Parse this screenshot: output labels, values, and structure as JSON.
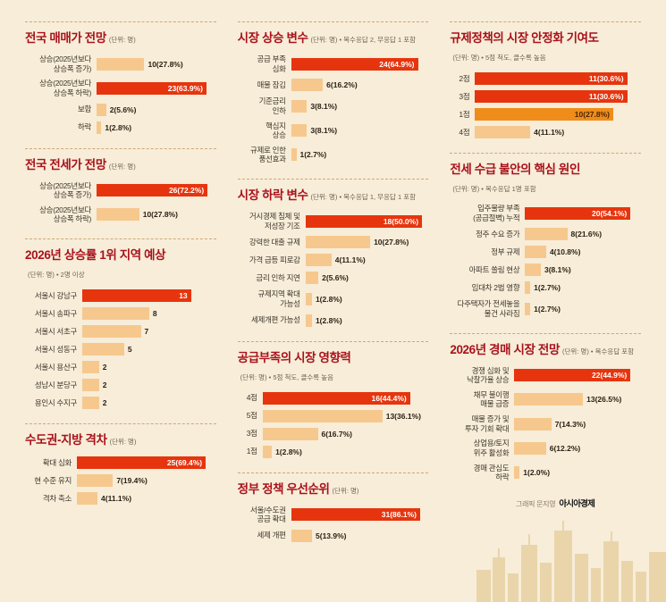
{
  "palette": {
    "red": "#e6350e",
    "peach": "#f6c88e",
    "orange": "#ef8c1a",
    "background": "#f7edd9",
    "title": "#a9121c"
  },
  "credit": {
    "prefix": "그래픽 문지영",
    "brand": "아시아경제"
  },
  "chart_data": [
    {
      "type": "bar",
      "column": 0,
      "title": "전국 매매가 전망",
      "note": "(단위: 명)",
      "categories": [
        "상승(2025년보다\n상승폭 증가)",
        "상승(2025년보다\n상승폭 하락)",
        "보합",
        "하락"
      ],
      "values": [
        10,
        23,
        2,
        1
      ],
      "value_labels": [
        "10(27.8%)",
        "23(63.9%)",
        "2(5.6%)",
        "1(2.8%)"
      ],
      "colors": [
        "peach",
        "red",
        "peach",
        "peach"
      ],
      "scale_max": 25,
      "label_width": 80
    },
    {
      "type": "bar",
      "column": 0,
      "title": "전국 전세가 전망",
      "note": "(단위: 명)",
      "categories": [
        "상승(2025년보다\n상승폭 증가)",
        "상승(2025년보다\n상승폭 하락)"
      ],
      "values": [
        26,
        10
      ],
      "value_labels": [
        "26(72.2%)",
        "10(27.8%)"
      ],
      "colors": [
        "red",
        "peach"
      ],
      "scale_max": 28,
      "label_width": 80
    },
    {
      "type": "bar",
      "column": 0,
      "title": "2026년 상승률 1위 지역 예상",
      "note": "(단위: 명) • 2명 이상",
      "categories": [
        "서울시 강남구",
        "서울시 송파구",
        "서울시 서초구",
        "서울시 성동구",
        "서울시 용산구",
        "성남시 분당구",
        "용인시 수지구"
      ],
      "values": [
        13,
        8,
        7,
        5,
        2,
        2,
        2
      ],
      "value_labels": [
        "13",
        "8",
        "7",
        "5",
        "2",
        "2",
        "2"
      ],
      "colors": [
        "red",
        "peach",
        "peach",
        "peach",
        "peach",
        "peach",
        "peach"
      ],
      "scale_max": 16,
      "label_width": 64
    },
    {
      "type": "bar",
      "column": 0,
      "title": "수도권-지방 격차",
      "note": "(단위: 명)",
      "categories": [
        "확대 심화",
        "현 수준 유지",
        "격차 축소"
      ],
      "values": [
        25,
        7,
        4
      ],
      "value_labels": [
        "25(69.4%)",
        "7(19.4%)",
        "4(11.1%)"
      ],
      "colors": [
        "red",
        "peach",
        "peach"
      ],
      "scale_max": 27,
      "label_width": 58
    },
    {
      "type": "bar",
      "column": 1,
      "title": "시장 상승 변수",
      "note": "(단위: 명) • 복수응답 2, 무응답 1 포함",
      "categories": [
        "공급 부족\n심화",
        "매물 잠김",
        "기준금리\n인하",
        "핵심지\n상승",
        "규제로 인한\n풍선효과"
      ],
      "values": [
        24,
        6,
        3,
        3,
        1
      ],
      "value_labels": [
        "24(64.9%)",
        "6(16.2%)",
        "3(8.1%)",
        "3(8.1%)",
        "1(2.7%)"
      ],
      "colors": [
        "red",
        "peach",
        "peach",
        "peach",
        "peach"
      ],
      "scale_max": 26,
      "label_width": 60
    },
    {
      "type": "bar",
      "column": 1,
      "title": "시장 하락 변수",
      "note": "(단위: 명) • 복수응답 1, 무응답 1 포함",
      "categories": [
        "거시경제 침체 및\n저성장 기조",
        "강력한 대출 규제",
        "가격 급등 피로감",
        "금리 인하 지연",
        "규제지역 확대\n가능성",
        "세제개편 가능성"
      ],
      "values": [
        18,
        10,
        4,
        2,
        1,
        1
      ],
      "value_labels": [
        "18(50.0%)",
        "10(27.8%)",
        "4(11.1%)",
        "2(5.6%)",
        "1(2.8%)",
        "1(2.8%)"
      ],
      "colors": [
        "red",
        "peach",
        "peach",
        "peach",
        "peach",
        "peach"
      ],
      "scale_max": 19,
      "label_width": 76
    },
    {
      "type": "bar",
      "column": 1,
      "title": "공급부족의 시장 영향력",
      "note": "(단위: 명) • 5점 척도, 클수록 높음",
      "categories": [
        "4점",
        "5점",
        "3점",
        "1점"
      ],
      "values": [
        16,
        13,
        6,
        1
      ],
      "value_labels": [
        "16(44.4%)",
        "13(36.1%)",
        "6(16.7%)",
        "1(2.8%)"
      ],
      "colors": [
        "red",
        "peach",
        "peach",
        "peach"
      ],
      "scale_max": 18,
      "label_width": 28
    },
    {
      "type": "bar",
      "column": 1,
      "title": "정부 정책 우선순위",
      "note": "(단위: 명)",
      "categories": [
        "서울/수도권\n공급 확대",
        "세제 개편"
      ],
      "values": [
        31,
        5
      ],
      "value_labels": [
        "31(86.1%)",
        "5(13.9%)"
      ],
      "colors": [
        "red",
        "peach"
      ],
      "scale_max": 33,
      "label_width": 60
    },
    {
      "type": "bar",
      "column": 2,
      "title": "규제정책의 시장 안정화 기여도",
      "note": "(단위: 명) • 5점 척도, 클수록 높음",
      "categories": [
        "2점",
        "3점",
        "1점",
        "4점"
      ],
      "values": [
        11,
        11,
        10,
        4
      ],
      "value_labels": [
        "11(30.6%)",
        "11(30.6%)",
        "10(27.8%)",
        "4(11.1%)"
      ],
      "colors": [
        "red",
        "red",
        "orange",
        "peach"
      ],
      "scale_max": 12,
      "label_width": 28
    },
    {
      "type": "bar",
      "column": 2,
      "title": "전세 수급 불안의 핵심 원인",
      "note": "(단위: 명) • 복수응답 1명 포함",
      "categories": [
        "입주물량 부족\n(공급절벽) 누적",
        "정주 수요 증가",
        "정부 규제",
        "아파트 쏠림 현상",
        "임대차 2법 영향",
        "다주택자가 전세놓을\n물건 사라짐"
      ],
      "values": [
        20,
        8,
        4,
        3,
        1,
        1
      ],
      "value_labels": [
        "20(54.1%)",
        "8(21.6%)",
        "4(10.8%)",
        "3(8.1%)",
        "1(2.7%)",
        "1(2.7%)"
      ],
      "colors": [
        "red",
        "peach",
        "peach",
        "peach",
        "peach",
        "peach"
      ],
      "scale_max": 22,
      "label_width": 84
    },
    {
      "type": "bar",
      "column": 2,
      "title": "2026년 경매 시장 전망",
      "note": "(단위: 명) • 복수응답 포함",
      "categories": [
        "경쟁 심화 및\n낙찰가율 상승",
        "채무 불이행\n매물 급증",
        "매물 증가 및\n투자 기회 확대",
        "상업용/토지\n위주 활성화",
        "경매 관심도\n하락"
      ],
      "values": [
        22,
        13,
        7,
        6,
        1
      ],
      "value_labels": [
        "22(44.9%)",
        "13(26.5%)",
        "7(14.3%)",
        "6(12.2%)",
        "1(2.0%)"
      ],
      "colors": [
        "red",
        "peach",
        "peach",
        "peach",
        "peach"
      ],
      "scale_max": 24,
      "label_width": 72
    }
  ]
}
